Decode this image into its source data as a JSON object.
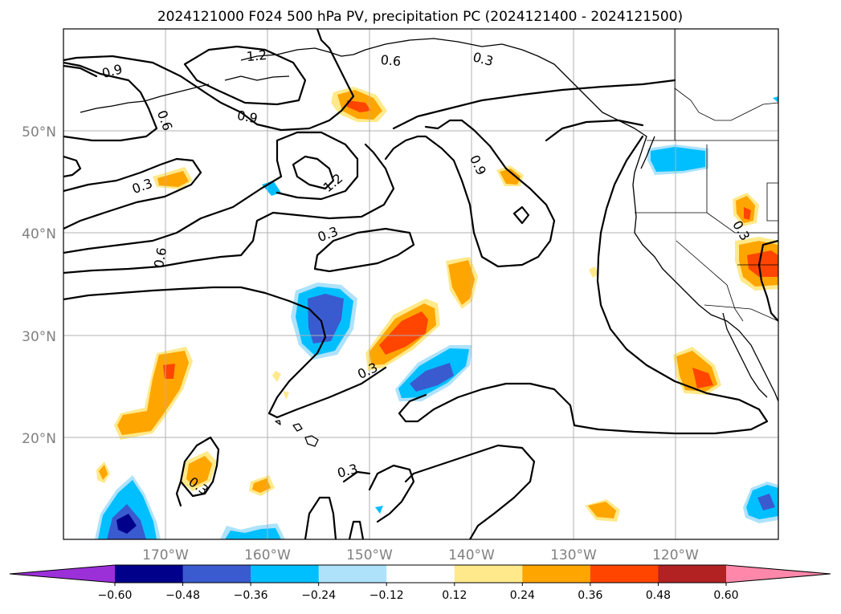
{
  "chart_data": {
    "type": "map-contour",
    "title": "2024121000 F024 500 hPa PV, precipitation PC (2024121400 - 2024121500)",
    "latitude_ticks": [
      "20°N",
      "30°N",
      "40°N",
      "50°N"
    ],
    "longitude_ticks": [
      "170°W",
      "160°W",
      "150°W",
      "140°W",
      "130°W",
      "120°W"
    ],
    "grid": true,
    "pv_contour_labels": [
      "0.9",
      "1.2",
      "0.6",
      "0.3",
      "0.6",
      "0.9",
      "0.3",
      "1.2",
      "0.9",
      "0.3",
      "0.6",
      "0.3",
      "0.3",
      "0.3",
      "0.3"
    ],
    "colorbar": {
      "ticks": [
        "−0.60",
        "−0.48",
        "−0.36",
        "−0.24",
        "−0.12",
        "0.12",
        "0.24",
        "0.36",
        "0.48",
        "0.60"
      ],
      "levels": [
        -0.6,
        -0.48,
        -0.36,
        -0.24,
        -0.12,
        0.12,
        0.24,
        0.36,
        0.48,
        0.6
      ],
      "colors": [
        "#9b30d9",
        "#00008b",
        "#3a5bd0",
        "#00bfff",
        "#aee2fb",
        "#ffffff",
        "#ffe98a",
        "#ffa500",
        "#ff4500",
        "#b22222",
        "#ff88aa"
      ],
      "extend": "both"
    }
  }
}
